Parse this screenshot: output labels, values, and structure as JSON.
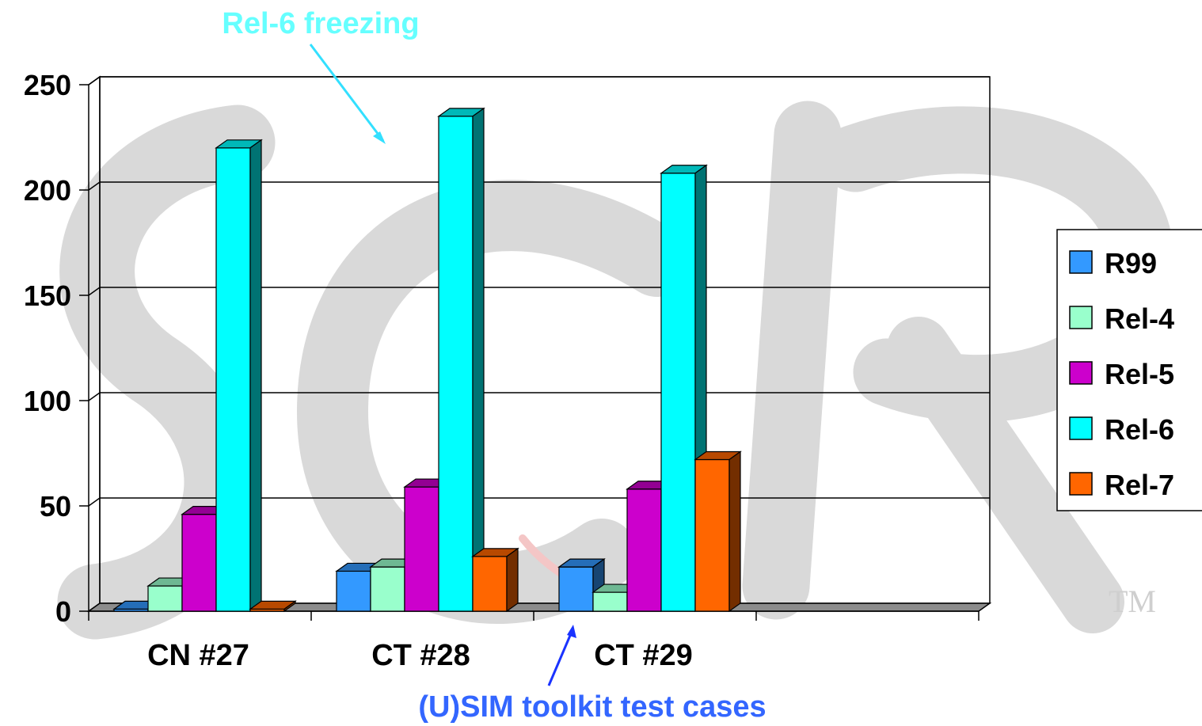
{
  "chart_data": {
    "type": "bar",
    "three_d": true,
    "categories": [
      "CN #27",
      "CT #28",
      "CT #29"
    ],
    "ylim": [
      0,
      250
    ],
    "yticks": [
      0,
      50,
      100,
      150,
      200,
      250
    ],
    "grid": true,
    "legend_position": "right",
    "series": [
      {
        "name": "R99",
        "color": "#3399ff",
        "values": [
          1,
          19,
          21
        ]
      },
      {
        "name": "Rel-4",
        "color": "#99ffcc",
        "values": [
          12,
          21,
          9
        ]
      },
      {
        "name": "Rel-5",
        "color": "#cc00cc",
        "values": [
          46,
          59,
          58
        ]
      },
      {
        "name": "Rel-6",
        "color": "#00ffff",
        "values": [
          220,
          235,
          208
        ]
      },
      {
        "name": "Rel-7",
        "color": "#ff6600",
        "values": [
          1,
          26,
          72
        ]
      }
    ],
    "annotations": [
      {
        "text": "Rel-6 freezing",
        "color": "#66ffff"
      },
      {
        "text": "(U)SIM toolkit test cases",
        "color": "#3366ff"
      }
    ]
  },
  "watermark": {
    "text": "TM"
  }
}
